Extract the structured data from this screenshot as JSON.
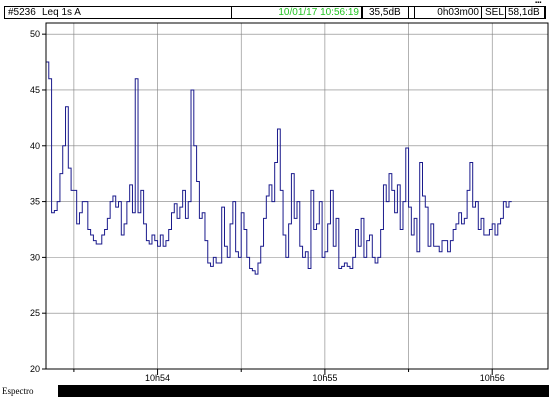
{
  "header": {
    "id": "#5236",
    "mode": "Leq 1s  A",
    "datetime": "10/01/17 10:56:19",
    "level": "35,5dB",
    "duration": "0h03m00",
    "sel_label": "SEL",
    "sel_value": "58,1dB"
  },
  "footer": {
    "label": "Espectro"
  },
  "colors": {
    "trace": "#1a1a8c",
    "datetime_text": "#22c322",
    "grid": "#808080"
  },
  "chart_data": {
    "type": "line",
    "style": "step",
    "xlabel": "",
    "ylabel": "",
    "ylim": [
      20,
      51
    ],
    "yticks": [
      20,
      25,
      30,
      35,
      40,
      45,
      50
    ],
    "x_time_range": [
      "10:53:20",
      "10:56:20"
    ],
    "xticks": [
      {
        "t": "10:54:00",
        "label": "10h54"
      },
      {
        "t": "10:55:00",
        "label": "10h55"
      },
      {
        "t": "10:56:00",
        "label": "10h56"
      }
    ],
    "x_minor_gridlines": [
      "10:53:30",
      "10:54:30",
      "10:55:30"
    ],
    "grid": true,
    "sample_interval_s": 1,
    "series": [
      {
        "name": "",
        "values": [
          47.5,
          46,
          34,
          34.2,
          35,
          37.5,
          40,
          43.5,
          38,
          36,
          36,
          33,
          34,
          35,
          35,
          32.5,
          32,
          31.5,
          31.2,
          31.2,
          32,
          32.5,
          33.5,
          35,
          35.5,
          34.5,
          35,
          32,
          33,
          35,
          36.5,
          34,
          46,
          34,
          36,
          33,
          31.5,
          31.2,
          32,
          31.5,
          31,
          32,
          31,
          31.5,
          32.5,
          34,
          34.8,
          33.5,
          34.5,
          36,
          33.5,
          35,
          45,
          40,
          36.8,
          33.5,
          34,
          31.5,
          29.5,
          29.2,
          30,
          29.5,
          29.5,
          34.5,
          31,
          30,
          33,
          35,
          30.5,
          30,
          34,
          32.5,
          30,
          29,
          28.8,
          28.5,
          29.5,
          31,
          33.5,
          35.5,
          36.5,
          35,
          38.5,
          41.5,
          36,
          32,
          30,
          33,
          37.5,
          33.5,
          35,
          31,
          30,
          30.5,
          29,
          36,
          32.5,
          33,
          35,
          30,
          30.5,
          33,
          36,
          31,
          33.5,
          29,
          29.2,
          29.5,
          29.2,
          29,
          30,
          32.5,
          31,
          33.5,
          30,
          31.5,
          32,
          30,
          29.5,
          30,
          32.5,
          36.5,
          35,
          37.5,
          36,
          34,
          36.5,
          32.5,
          35,
          39.8,
          34.5,
          32,
          33.5,
          30.5,
          38.5,
          35.5,
          34.5,
          31,
          33,
          31,
          31,
          30.5,
          31.5,
          31.5,
          30.5,
          31.5,
          32.5,
          33,
          34,
          33,
          33.5,
          36,
          38.5,
          34.5,
          35,
          32.5,
          33.5,
          32,
          32,
          32.5,
          33,
          32,
          33,
          33.5,
          35,
          34.5,
          35
        ]
      }
    ]
  }
}
